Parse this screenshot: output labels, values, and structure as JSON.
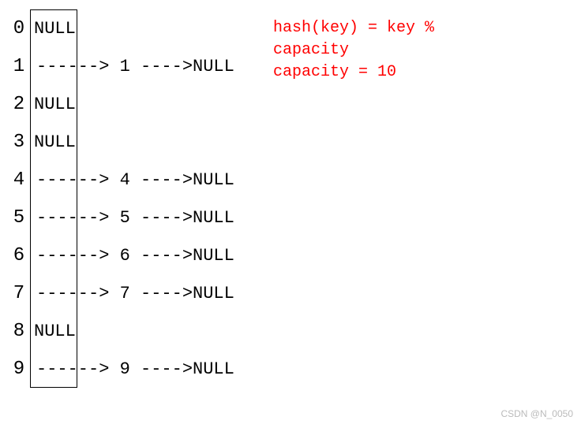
{
  "diagram": {
    "capacity": 10,
    "arrow1": "------>",
    "arrow2": "---->",
    "null_label": "NULL",
    "rows": [
      {
        "index": "0",
        "has_chain": false,
        "value": ""
      },
      {
        "index": "1",
        "has_chain": true,
        "value": "1"
      },
      {
        "index": "2",
        "has_chain": false,
        "value": ""
      },
      {
        "index": "3",
        "has_chain": false,
        "value": ""
      },
      {
        "index": "4",
        "has_chain": true,
        "value": "4"
      },
      {
        "index": "5",
        "has_chain": true,
        "value": "5"
      },
      {
        "index": "6",
        "has_chain": true,
        "value": "6"
      },
      {
        "index": "7",
        "has_chain": true,
        "value": "7"
      },
      {
        "index": "8",
        "has_chain": false,
        "value": ""
      },
      {
        "index": "9",
        "has_chain": true,
        "value": "9"
      }
    ]
  },
  "formula": {
    "line1": "hash(key) = key %",
    "line2": "capacity",
    "line3": "capacity = 10"
  },
  "colors": {
    "text": "#000000",
    "formula": "#ff0000",
    "background": "#ffffff",
    "border": "#000000"
  },
  "watermark": "CSDN @N_0050"
}
